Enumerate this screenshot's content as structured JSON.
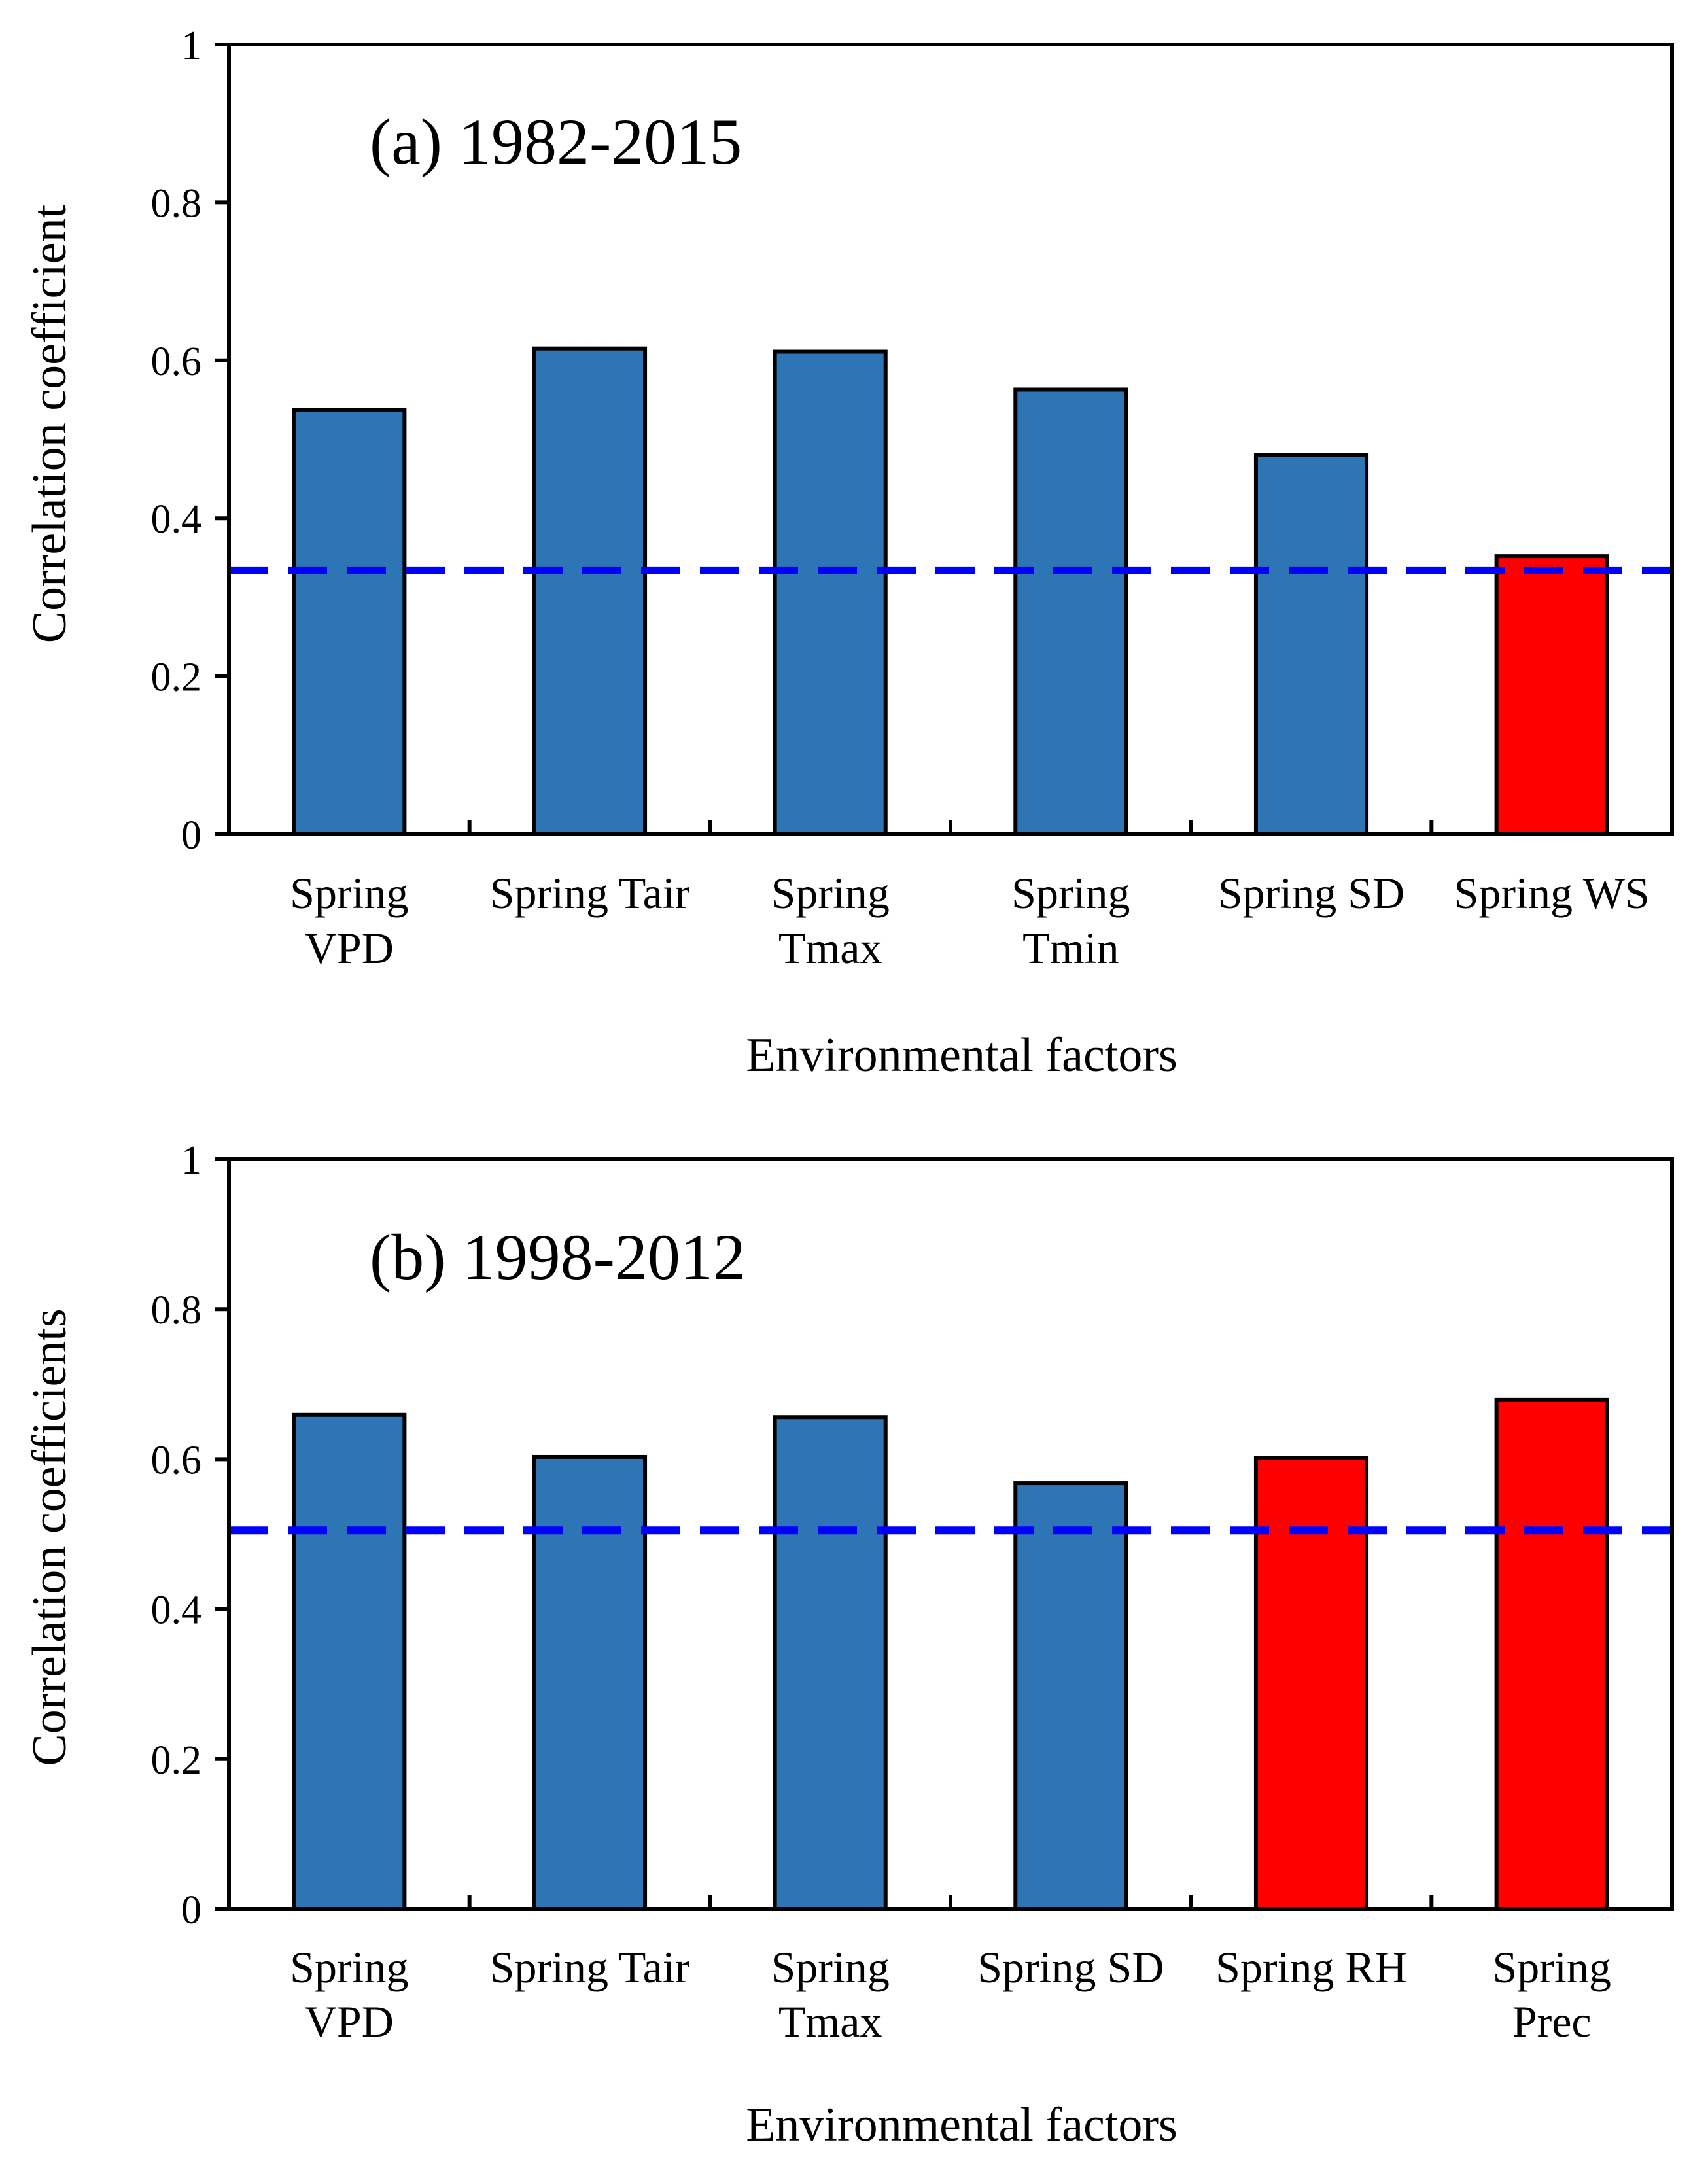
{
  "chart_data": [
    {
      "type": "bar",
      "panel_title": "(a) 1982-2015",
      "xlabel": "Environmental factors",
      "ylabel": "Correlation coefficient",
      "ylim": [
        0,
        1
      ],
      "yticks": [
        "0",
        "0.2",
        "0.4",
        "0.6",
        "0.8",
        "1"
      ],
      "categories": [
        [
          "Spring",
          "VPD"
        ],
        [
          "Spring Tair"
        ],
        [
          "Spring",
          "Tmax"
        ],
        [
          "Spring",
          "Tmin"
        ],
        [
          "Spring SD"
        ],
        [
          "Spring WS"
        ]
      ],
      "values": [
        0.537,
        0.615,
        0.611,
        0.563,
        0.48,
        0.352
      ],
      "bar_colors": [
        "#2E75B6",
        "#2E75B6",
        "#2E75B6",
        "#2E75B6",
        "#2E75B6",
        "#FF0000"
      ],
      "threshold": 0.334,
      "threshold_color": "#0000FF"
    },
    {
      "type": "bar",
      "panel_title": "(b) 1998-2012",
      "xlabel": "Environmental factors",
      "ylabel": "Correlation coefficients",
      "ylim": [
        0,
        1
      ],
      "yticks": [
        "0",
        "0.2",
        "0.4",
        "0.6",
        "0.8",
        "1"
      ],
      "categories": [
        [
          "Spring",
          "VPD"
        ],
        [
          "Spring Tair"
        ],
        [
          "Spring",
          "Tmax"
        ],
        [
          "Spring SD"
        ],
        [
          "Spring RH"
        ],
        [
          "Spring",
          "Prec"
        ]
      ],
      "values": [
        0.659,
        0.603,
        0.656,
        0.568,
        0.602,
        0.679
      ],
      "bar_colors": [
        "#2E75B6",
        "#2E75B6",
        "#2E75B6",
        "#2E75B6",
        "#FF0000",
        "#FF0000"
      ],
      "threshold": 0.505,
      "threshold_color": "#0000FF"
    }
  ]
}
